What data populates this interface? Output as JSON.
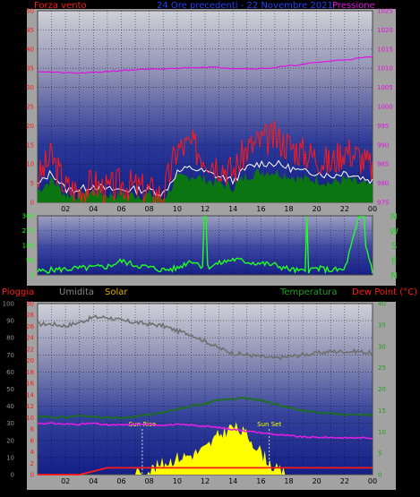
{
  "header": {
    "wind_label": "Forza vento",
    "title": "24 Ore precedenti  - 22 Novembre 2021",
    "pressure_label": "Pressione",
    "rain_label": "Pioggia",
    "humidity_label": "Umidita",
    "solar_label": "Solar",
    "temperature_label": "Temperatura",
    "dewpoint_label": "Dew Point (°C)"
  },
  "colors": {
    "wind": "#ff1a1a",
    "wind_avg": "#0b7a0b",
    "pressure": "#e010e0",
    "direction": "#20ff20",
    "humidity": "#707070",
    "temperature": "#1e6e1e",
    "dewpoint": "#e020e0",
    "solar": "#ffff00",
    "rain": "#ff1a1a",
    "title": "#2040ff",
    "humidity_label": "#8a8a8a",
    "solar_label": "#e0b000",
    "temperature_label": "#1f9f1f"
  },
  "chart_data": [
    {
      "type": "line",
      "name": "wind-pressure",
      "x_tick_labels": [
        "02",
        "04",
        "06",
        "08",
        "10",
        "12",
        "14",
        "16",
        "18",
        "20",
        "22",
        "00"
      ],
      "x": [
        0,
        1,
        2,
        3,
        4,
        5,
        6,
        7,
        8,
        9,
        10,
        11,
        12,
        13,
        14,
        15,
        16,
        17,
        18,
        19,
        20,
        21,
        22,
        23,
        24
      ],
      "ylim_left": [
        0,
        50
      ],
      "yticks_left": [
        0,
        5,
        10,
        15,
        20,
        25,
        30,
        35,
        40,
        45,
        50
      ],
      "ylim_right": [
        975,
        1025
      ],
      "yticks_right": [
        975,
        980,
        985,
        990,
        995,
        1000,
        1005,
        1010,
        1015,
        1020,
        1025
      ],
      "series": [
        {
          "name": "Forza vento",
          "axis": "left",
          "style": "line",
          "values": [
            6,
            12,
            4,
            3,
            5,
            3,
            5,
            4,
            3,
            2,
            14,
            15,
            12,
            10,
            8,
            14,
            16,
            17,
            15,
            13,
            12,
            10,
            14,
            12,
            9
          ]
        },
        {
          "name": "",
          "axis": "left",
          "style": "area",
          "values": [
            3,
            6,
            2,
            2,
            3,
            2,
            2,
            2,
            2,
            1,
            6,
            7,
            6,
            5,
            4,
            7,
            8,
            8,
            7,
            6,
            6,
            5,
            6,
            5,
            4
          ]
        },
        {
          "name": "Pressione",
          "axis": "right",
          "style": "line",
          "values": [
            1009.2,
            1009.0,
            1008.8,
            1008.7,
            1008.9,
            1009.2,
            1009.4,
            1009.6,
            1009.7,
            1009.8,
            1010.0,
            1010.2,
            1010.3,
            1010.2,
            1010.0,
            1009.9,
            1009.9,
            1010.2,
            1010.6,
            1011.0,
            1011.5,
            1011.9,
            1012.2,
            1012.6,
            1013.0
          ]
        }
      ]
    },
    {
      "type": "line",
      "name": "wind-direction",
      "ylim": [
        0,
        360
      ],
      "yticks": [
        0,
        90,
        180,
        270,
        360
      ],
      "direction_labels": [
        "N",
        "W",
        "S",
        "E",
        "N"
      ],
      "x": [
        0,
        1,
        2,
        3,
        4,
        5,
        6,
        7,
        8,
        9,
        10,
        11,
        12,
        13,
        14,
        15,
        16,
        17,
        18,
        19,
        20,
        21,
        22,
        23,
        24
      ],
      "series": [
        {
          "name": "",
          "values": [
            20,
            30,
            35,
            40,
            45,
            50,
            85,
            60,
            45,
            30,
            40,
            90,
            45,
            70,
            95,
            80,
            70,
            60,
            35,
            20,
            40,
            30,
            30,
            340,
            25
          ]
        }
      ]
    },
    {
      "type": "line",
      "name": "rain-humidity-solar-temperature",
      "x": [
        0,
        1,
        2,
        3,
        4,
        5,
        6,
        7,
        8,
        9,
        10,
        11,
        12,
        13,
        14,
        15,
        16,
        17,
        18,
        19,
        20,
        21,
        22,
        23,
        24
      ],
      "ylim_humidity": [
        0,
        100
      ],
      "yticks_humidity": [
        0,
        10,
        20,
        30,
        40,
        50,
        60,
        70,
        80,
        90,
        100
      ],
      "ylim_rain": [
        0,
        30
      ],
      "yticks_rain": [
        0,
        2,
        4,
        6,
        8,
        10,
        12,
        14,
        16,
        18,
        20,
        22,
        24,
        26,
        28,
        30
      ],
      "ylim_temp": [
        0,
        40
      ],
      "yticks_temp": [
        0,
        5,
        10,
        15,
        20,
        25,
        30,
        35,
        40
      ],
      "annotations": {
        "sun_rise": "Sun Rise",
        "sun_set": "Sun Set",
        "sun_rise_x": 7.5,
        "sun_set_x": 16.6
      },
      "series": [
        {
          "name": "Umidita",
          "axis": "humidity",
          "values": [
            88,
            88,
            87,
            89,
            92,
            92,
            90,
            89,
            88,
            87,
            84,
            82,
            78,
            74,
            71,
            70,
            69,
            68,
            69,
            70,
            71,
            72,
            72,
            72,
            71
          ]
        },
        {
          "name": "Temperatura",
          "axis": "temp",
          "values": [
            13.5,
            13.5,
            13.4,
            13.8,
            13.6,
            13.3,
            13.3,
            13.6,
            14,
            14.5,
            15.2,
            16.0,
            16.5,
            17.4,
            17.8,
            17.8,
            17.3,
            16.5,
            15.7,
            15.0,
            14.5,
            14.2,
            14.0,
            14.0,
            14.0
          ]
        },
        {
          "name": "Dew Point (°C)",
          "axis": "temp",
          "values": [
            12,
            12,
            11.8,
            11.8,
            12,
            11.6,
            11.6,
            11.8,
            11.7,
            11.6,
            11.7,
            11.6,
            11.3,
            11.0,
            10.6,
            10.2,
            9.8,
            9.4,
            9.1,
            8.8,
            8.7,
            8.7,
            8.6,
            8.6,
            8.6
          ]
        },
        {
          "name": "Solar",
          "axis": "rain",
          "values": [
            0,
            0,
            0,
            0,
            0,
            0,
            0,
            0,
            0.8,
            2,
            3,
            3.5,
            4.5,
            7,
            8.5,
            7,
            4,
            1,
            0,
            0,
            0,
            0,
            0,
            0,
            0
          ]
        },
        {
          "name": "Pioggia",
          "axis": "rain",
          "values": [
            0,
            0,
            0,
            0,
            0.6,
            1.2,
            1.2,
            1.2,
            1.2,
            1.2,
            1.2,
            1.2,
            1.2,
            1.2,
            1.2,
            1.2,
            1.2,
            1.2,
            1.2,
            1.2,
            1.2,
            1.2,
            1.2,
            1.2,
            1.2
          ]
        }
      ]
    }
  ]
}
